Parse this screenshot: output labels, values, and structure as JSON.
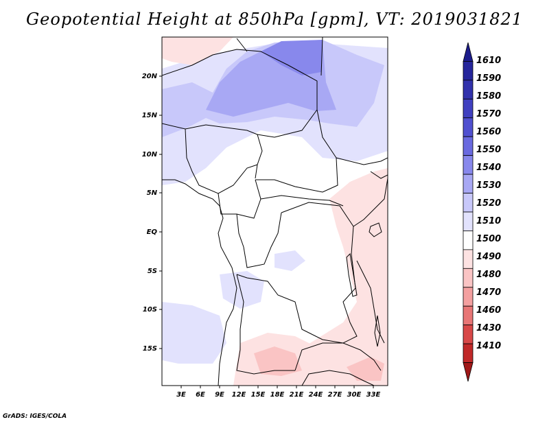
{
  "title": "Geopotential Height at 850hPa [gpm], VT: 2019031821",
  "footer": "GrADS: IGES/COLA",
  "map": {
    "lat_labels": [
      "20N",
      "15N",
      "10N",
      "5N",
      "EQ",
      "5S",
      "10S",
      "15S"
    ],
    "lon_labels": [
      "3E",
      "6E",
      "9E",
      "12E",
      "15E",
      "18E",
      "21E",
      "24E",
      "27E",
      "30E",
      "33E"
    ]
  },
  "colorbar": {
    "labels": [
      "1610",
      "1590",
      "1580",
      "1570",
      "1560",
      "1550",
      "1540",
      "1530",
      "1520",
      "1510",
      "1500",
      "1490",
      "1480",
      "1470",
      "1460",
      "1430",
      "1410"
    ],
    "colors": [
      "#1c1c8c",
      "#26269c",
      "#3232ac",
      "#4040c0",
      "#5050d0",
      "#6a6ae0",
      "#8888ec",
      "#a8a8f4",
      "#c8c8fa",
      "#e2e2fd",
      "#ffffff",
      "#fde2e2",
      "#fac4c4",
      "#f4a0a0",
      "#e87676",
      "#d84848",
      "#c02828",
      "#a01818"
    ]
  }
}
